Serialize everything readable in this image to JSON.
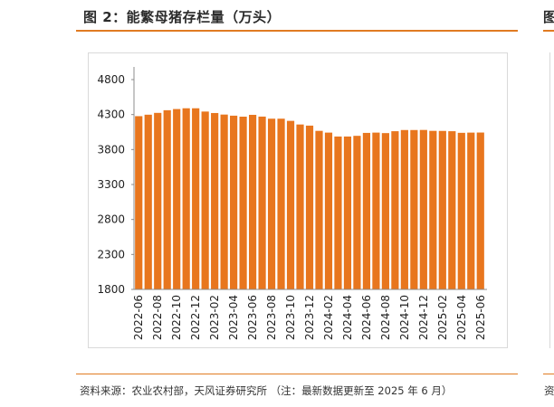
{
  "figure": {
    "title": "图 2：能繁母猪存栏量（万头）",
    "source": "资料来源：农业农村部，天风证券研究所 （注：最新数据更新至 2025 年 6 月）",
    "right_title_fragment": "图",
    "right_source_fragment": "资"
  },
  "colors": {
    "bar": "#e8761e",
    "accent_rule": "#e07b22",
    "axis": "#8c8c8c"
  },
  "chart_data": {
    "type": "bar",
    "title": "能繁母猪存栏量（万头）",
    "xlabel": "",
    "ylabel": "",
    "ylim": [
      1800,
      4800
    ],
    "yticks": [
      1800,
      2300,
      2800,
      3300,
      3800,
      4300,
      4800
    ],
    "grid": false,
    "x": [
      "2022-06",
      "2022-07",
      "2022-08",
      "2022-09",
      "2022-10",
      "2022-11",
      "2022-12",
      "2023-01",
      "2023-02",
      "2023-03",
      "2023-04",
      "2023-05",
      "2023-06",
      "2023-07",
      "2023-08",
      "2023-09",
      "2023-10",
      "2023-11",
      "2023-12",
      "2024-01",
      "2024-02",
      "2024-03",
      "2024-04",
      "2024-05",
      "2024-06",
      "2024-07",
      "2024-08",
      "2024-09",
      "2024-10",
      "2024-11",
      "2024-12",
      "2025-01",
      "2025-02",
      "2025-03",
      "2025-04",
      "2025-05",
      "2025-06"
    ],
    "values": [
      4277,
      4298,
      4324,
      4362,
      4379,
      4390,
      4390,
      4343,
      4322,
      4300,
      4284,
      4270,
      4296,
      4271,
      4241,
      4241,
      4210,
      4158,
      4142,
      4067,
      4042,
      3986,
      3986,
      3996,
      4038,
      4042,
      4035,
      4062,
      4079,
      4079,
      4080,
      4067,
      4066,
      4062,
      4039,
      4042,
      4043
    ],
    "tick_labels": [
      "2022-06",
      "2022-08",
      "2022-10",
      "2022-12",
      "2023-02",
      "2023-04",
      "2023-06",
      "2023-08",
      "2023-10",
      "2023-12",
      "2024-02",
      "2024-04",
      "2024-06",
      "2024-08",
      "2024-10",
      "2024-12",
      "2025-02",
      "2025-04",
      "2025-06"
    ]
  }
}
